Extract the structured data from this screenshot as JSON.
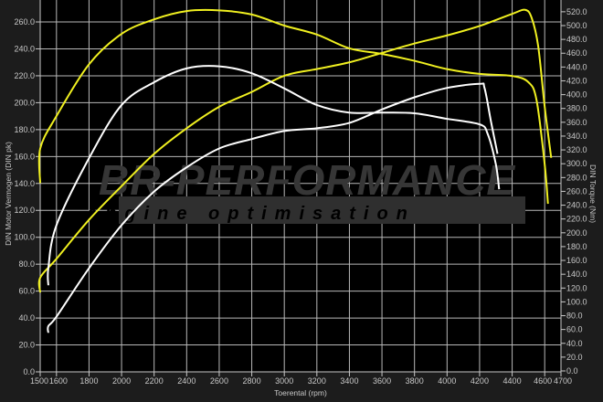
{
  "chart_data": {
    "type": "line",
    "title": "",
    "xlabel": "Toerental (rpm)",
    "ylabel": "DIN Motor Vermogen (DIN pk)",
    "y2label": "DIN Torque (Nm)",
    "xlim": [
      1500,
      4700
    ],
    "ylim": [
      0,
      265
    ],
    "y2lim": [
      0,
      530
    ],
    "xticks": [
      1500,
      1600,
      1800,
      2000,
      2200,
      2400,
      2600,
      2800,
      3000,
      3200,
      3400,
      3600,
      3800,
      4000,
      4200,
      4400,
      4600,
      4700
    ],
    "yticks": [
      "0.0",
      "20.0",
      "40.0",
      "60.0",
      "80.0",
      "100.0",
      "120.0",
      "140.0",
      "160.0",
      "180.0",
      "200.0",
      "220.0",
      "240.0",
      "260.0"
    ],
    "y2ticks": [
      "0.0",
      "20.0",
      "40.0",
      "60.0",
      "80.0",
      "100.0",
      "120.0",
      "140.0",
      "160.0",
      "180.0",
      "200.0",
      "220.0",
      "240.0",
      "260.0",
      "280.0",
      "300.0",
      "320.0",
      "340.0",
      "360.0",
      "380.0",
      "400.0",
      "420.0",
      "440.0",
      "460.0",
      "480.0",
      "500.0",
      "520.0"
    ],
    "grid": true,
    "background": "#000000",
    "series": [
      {
        "axis": "y2",
        "color": "#f0f020",
        "x": [
          1500,
          1500,
          1600,
          1800,
          2000,
          2200,
          2400,
          2600,
          2800,
          3000,
          3200,
          3400,
          3600,
          3800,
          4000,
          4200,
          4400,
          4500,
          4550,
          4600,
          4620
        ],
        "y": [
          272,
          322,
          369,
          444,
          488,
          509,
          521,
          522,
          516,
          500,
          487,
          467,
          459,
          449,
          437,
          430,
          427,
          418,
          392,
          299,
          242
        ]
      },
      {
        "axis": "y",
        "color": "#f0f020",
        "x": [
          1500,
          1500,
          1600,
          1800,
          2000,
          2200,
          2400,
          2600,
          2800,
          3000,
          3200,
          3400,
          3600,
          3800,
          4000,
          4200,
          4400,
          4480,
          4520,
          4560,
          4600,
          4640
        ],
        "y": [
          59,
          70,
          84,
          113,
          138,
          162,
          181,
          197,
          208,
          220,
          225,
          230,
          237,
          244,
          250,
          257,
          266,
          269,
          263,
          242,
          197,
          159
        ]
      },
      {
        "axis": "y2",
        "color": "#ffffff",
        "x": [
          1550,
          1550,
          1600,
          1800,
          2000,
          2200,
          2400,
          2600,
          2800,
          3000,
          3200,
          3400,
          3600,
          3800,
          4000,
          4200,
          4250,
          4300,
          4320
        ],
        "y": [
          124,
          149,
          211,
          308,
          385,
          418,
          438,
          441,
          431,
          409,
          385,
          374,
          374,
          373,
          365,
          357,
          343,
          299,
          263
        ]
      },
      {
        "axis": "y",
        "color": "#ffffff",
        "x": [
          1550,
          1550,
          1600,
          1800,
          2000,
          2200,
          2400,
          2600,
          2800,
          3000,
          3200,
          3400,
          3600,
          3800,
          4000,
          4200,
          4230,
          4270,
          4310
        ],
        "y": [
          29,
          34,
          41,
          77,
          109,
          134,
          152,
          166,
          173,
          179,
          181,
          185,
          195,
          204,
          211,
          214,
          211,
          186,
          162
        ]
      }
    ]
  },
  "watermark": {
    "brand": "BR-Performance",
    "tagline": "engine optimisation"
  }
}
